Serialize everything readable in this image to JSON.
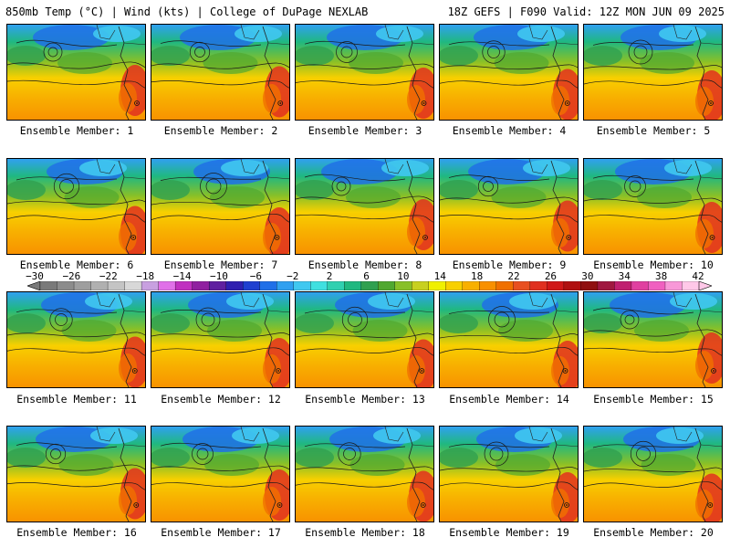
{
  "header": {
    "left": "850mb Temp (°C) | Wind (kts) | College of DuPage NEXLAB",
    "right": "18Z GEFS | F090 Valid: 12Z MON JUN 09 2025"
  },
  "panels": [
    {
      "label": "Ensemble Member: 1"
    },
    {
      "label": "Ensemble Member: 2"
    },
    {
      "label": "Ensemble Member: 3"
    },
    {
      "label": "Ensemble Member: 4"
    },
    {
      "label": "Ensemble Member: 5"
    },
    {
      "label": "Ensemble Member: 6"
    },
    {
      "label": "Ensemble Member: 7"
    },
    {
      "label": "Ensemble Member: 8"
    },
    {
      "label": "Ensemble Member: 9"
    },
    {
      "label": "Ensemble Member: 10"
    },
    {
      "label": "Ensemble Member: 11"
    },
    {
      "label": "Ensemble Member: 12"
    },
    {
      "label": "Ensemble Member: 13"
    },
    {
      "label": "Ensemble Member: 14"
    },
    {
      "label": "Ensemble Member: 15"
    },
    {
      "label": "Ensemble Member: 16"
    },
    {
      "label": "Ensemble Member: 17"
    },
    {
      "label": "Ensemble Member: 18"
    },
    {
      "label": "Ensemble Member: 19"
    },
    {
      "label": "Ensemble Member: 20"
    }
  ],
  "colorbar": {
    "ticks": [
      "-30",
      "-26",
      "-22",
      "-18",
      "-14",
      "-10",
      "-6",
      "-2",
      "2",
      "6",
      "10",
      "14",
      "18",
      "22",
      "26",
      "30",
      "34",
      "38",
      "42"
    ],
    "colors": [
      "#7a7a7a",
      "#8c8c8c",
      "#9e9e9e",
      "#b0b0b0",
      "#c4c4c4",
      "#d8d8d8",
      "#c8a0e0",
      "#e070e8",
      "#c030c0",
      "#9020a0",
      "#6020a0",
      "#3020b0",
      "#2040d0",
      "#2070e8",
      "#30a0f0",
      "#40c8f0",
      "#40e0e0",
      "#30d0b0",
      "#20b880",
      "#30a050",
      "#50a830",
      "#88c028",
      "#c8d020",
      "#f0f000",
      "#f8d000",
      "#f8b000",
      "#f89000",
      "#f07000",
      "#e85020",
      "#e03020",
      "#d01818",
      "#b01010",
      "#901010",
      "#a01840",
      "#c02070",
      "#e040a0",
      "#f060c0",
      "#f898d8",
      "#ffc8e8"
    ]
  }
}
